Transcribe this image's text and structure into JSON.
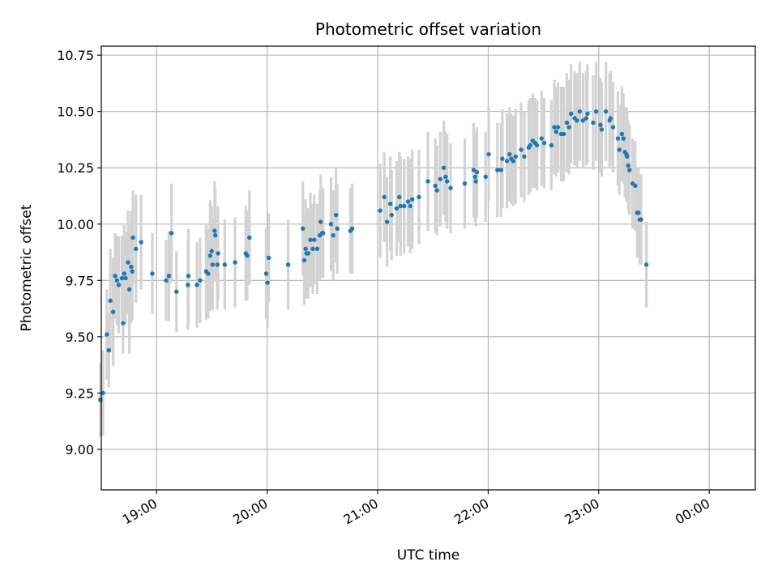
{
  "chart_data": {
    "type": "scatter",
    "title": "Photometric offset variation",
    "xlabel": "UTC time",
    "ylabel": "Photometric offset",
    "x_unit": "minutes relative to 00:00 UTC",
    "xlim": [
      -330,
      25
    ],
    "ylim": [
      8.82,
      10.79
    ],
    "x_ticks": [
      {
        "value": -300,
        "label": "19:00"
      },
      {
        "value": -240,
        "label": "20:00"
      },
      {
        "value": -180,
        "label": "21:00"
      },
      {
        "value": -120,
        "label": "22:00"
      },
      {
        "value": -60,
        "label": "23:00"
      },
      {
        "value": 0,
        "label": "00:00"
      }
    ],
    "y_ticks": [
      9.0,
      9.25,
      9.5,
      9.75,
      10.0,
      10.25,
      10.5,
      10.75
    ],
    "y_tick_labels": [
      "9.00",
      "9.25",
      "9.50",
      "9.75",
      "10.00",
      "10.25",
      "10.50",
      "10.75"
    ],
    "grid": true,
    "colors": {
      "points": "#1f77b4",
      "errorbars": "#d3d3d3",
      "grid": "#b0b0b0"
    },
    "series": [
      {
        "points": [
          [
            -330.5,
            9.22,
            0.33
          ],
          [
            -329.1,
            9.25,
            0.38
          ],
          [
            -327.0,
            9.51,
            0.4
          ],
          [
            -325.9,
            9.44,
            0.33
          ],
          [
            -325.1,
            9.66,
            0.46
          ],
          [
            -323.6,
            9.61,
            0.48
          ],
          [
            -322.5,
            9.77,
            0.38
          ],
          [
            -321.5,
            9.75,
            0.4
          ],
          [
            -320.5,
            9.73,
            0.43
          ],
          [
            -318.8,
            9.76,
            0.38
          ],
          [
            -318.2,
            9.56,
            0.27
          ],
          [
            -317.6,
            9.78,
            0.43
          ],
          [
            -316.8,
            9.76,
            0.41
          ],
          [
            -315.5,
            9.83,
            0.46
          ],
          [
            -314.8,
            9.71,
            0.57
          ],
          [
            -313.8,
            9.81,
            0.5
          ],
          [
            -313.2,
            9.79,
            0.43
          ],
          [
            -312.8,
            9.94,
            0.42
          ],
          [
            -311.2,
            9.89,
            0.48
          ],
          [
            -308.4,
            9.92,
            0.42
          ],
          [
            -302.3,
            9.78,
            0.36
          ],
          [
            -294.8,
            9.75,
            0.36
          ],
          [
            -293.3,
            9.77,
            0.4
          ],
          [
            -291.9,
            9.96,
            0.44
          ],
          [
            -289.2,
            9.7,
            0.36
          ],
          [
            -283.0,
            9.73,
            0.4
          ],
          [
            -282.7,
            9.77,
            0.42
          ],
          [
            -278.1,
            9.73,
            0.38
          ],
          [
            -276.4,
            9.75,
            0.38
          ],
          [
            -273.1,
            9.79,
            0.43
          ],
          [
            -272.0,
            9.78,
            0.4
          ],
          [
            -270.9,
            9.86,
            0.49
          ],
          [
            -270.1,
            9.88,
            0.4
          ],
          [
            -269.6,
            9.82,
            0.4
          ],
          [
            -268.5,
            9.97,
            0.44
          ],
          [
            -268.1,
            9.95,
            0.41
          ],
          [
            -267.0,
            9.82,
            0.4
          ],
          [
            -266.6,
            9.87,
            0.42
          ],
          [
            -263.0,
            9.82,
            0.4
          ],
          [
            -257.4,
            9.83,
            0.4
          ],
          [
            -251.6,
            9.87,
            0.42
          ],
          [
            -250.8,
            9.86,
            0.4
          ],
          [
            -249.6,
            9.94,
            0.42
          ],
          [
            -240.5,
            9.78,
            0.4
          ],
          [
            -239.8,
            9.74,
            0.4
          ],
          [
            -239.1,
            9.85,
            0.4
          ],
          [
            -228.6,
            9.82,
            0.4
          ],
          [
            -220.6,
            9.98,
            0.42
          ],
          [
            -219.8,
            9.84,
            0.4
          ],
          [
            -219.1,
            9.89,
            0.44
          ],
          [
            -218.6,
            9.87,
            0.4
          ],
          [
            -217.7,
            9.87,
            0.4
          ],
          [
            -216.5,
            9.93,
            0.42
          ],
          [
            -215.2,
            9.89,
            0.4
          ],
          [
            -214.4,
            9.93,
            0.4
          ],
          [
            -212.8,
            9.89,
            0.4
          ],
          [
            -211.4,
            9.95,
            0.4
          ],
          [
            -210.9,
            10.01,
            0.42
          ],
          [
            -210.1,
            9.96,
            0.4
          ],
          [
            -209.6,
            9.96,
            0.4
          ],
          [
            -205.3,
            10.0,
            0.42
          ],
          [
            -204.1,
            9.95,
            0.4
          ],
          [
            -202.6,
            10.04,
            0.42
          ],
          [
            -201.9,
            9.98,
            0.4
          ],
          [
            -194.8,
            9.97,
            0.38
          ],
          [
            -193.8,
            9.98,
            0.4
          ],
          [
            -178.6,
            10.06,
            0.42
          ],
          [
            -176.4,
            10.12,
            0.4
          ],
          [
            -174.9,
            10.01,
            0.4
          ],
          [
            -173.1,
            10.09,
            0.42
          ],
          [
            -172.4,
            10.04,
            0.4
          ],
          [
            -169.7,
            10.07,
            0.42
          ],
          [
            -168.2,
            10.12,
            0.4
          ],
          [
            -167.6,
            10.08,
            0.44
          ],
          [
            -165.6,
            10.08,
            0.42
          ],
          [
            -163.5,
            10.1,
            0.4
          ],
          [
            -162.3,
            10.08,
            0.42
          ],
          [
            -161.2,
            10.11,
            0.44
          ],
          [
            -157.6,
            10.12,
            0.42
          ],
          [
            -152.7,
            10.19,
            0.44
          ],
          [
            -148.7,
            10.17,
            0.42
          ],
          [
            -147.8,
            10.15,
            0.4
          ],
          [
            -146.0,
            10.2,
            0.42
          ],
          [
            -144.1,
            10.25,
            0.42
          ],
          [
            -143.1,
            10.21,
            0.4
          ],
          [
            -142.3,
            10.19,
            0.42
          ],
          [
            -140.4,
            10.16,
            0.4
          ],
          [
            -132.7,
            10.18,
            0.4
          ],
          [
            -127.9,
            10.24,
            0.42
          ],
          [
            -127.1,
            10.21,
            0.4
          ],
          [
            -126.7,
            10.19,
            0.4
          ],
          [
            -126.1,
            10.23,
            0.4
          ],
          [
            -121.4,
            10.21,
            0.4
          ],
          [
            -119.7,
            10.31,
            0.42
          ],
          [
            -115.0,
            10.24,
            0.42
          ],
          [
            -113.0,
            10.24,
            0.42
          ],
          [
            -112.3,
            10.29,
            0.44
          ],
          [
            -109.8,
            10.28,
            0.42
          ],
          [
            -108.4,
            10.31,
            0.42
          ],
          [
            -107.5,
            10.29,
            0.4
          ],
          [
            -106.4,
            10.28,
            0.4
          ],
          [
            -105.1,
            10.3,
            0.42
          ],
          [
            -102.1,
            10.33,
            0.42
          ],
          [
            -100.4,
            10.3,
            0.4
          ],
          [
            -98.0,
            10.34,
            0.42
          ],
          [
            -97.2,
            10.35,
            0.42
          ],
          [
            -95.8,
            10.37,
            0.42
          ],
          [
            -94.5,
            10.36,
            0.4
          ],
          [
            -93.5,
            10.35,
            0.4
          ],
          [
            -91.0,
            10.38,
            0.42
          ],
          [
            -89.6,
            10.36,
            0.4
          ],
          [
            -85.7,
            10.35,
            0.4
          ],
          [
            -84.1,
            10.43,
            0.42
          ],
          [
            -83.1,
            10.41,
            0.4
          ],
          [
            -82.1,
            10.43,
            0.4
          ],
          [
            -80.4,
            10.4,
            0.42
          ],
          [
            -79.0,
            10.4,
            0.42
          ],
          [
            -77.3,
            10.45,
            0.44
          ],
          [
            -76.1,
            10.43,
            0.42
          ],
          [
            -75.0,
            10.49,
            0.44
          ],
          [
            -73.1,
            10.47,
            0.42
          ],
          [
            -71.8,
            10.46,
            0.42
          ],
          [
            -70.3,
            10.5,
            0.44
          ],
          [
            -68.5,
            10.46,
            0.42
          ],
          [
            -66.8,
            10.47,
            0.42
          ],
          [
            -66.1,
            10.49,
            0.44
          ],
          [
            -63.0,
            10.45,
            0.42
          ],
          [
            -61.4,
            10.5,
            0.44
          ],
          [
            -59.1,
            10.44,
            0.42
          ],
          [
            -58.4,
            10.42,
            0.42
          ],
          [
            -56.1,
            10.5,
            0.44
          ],
          [
            -54.1,
            10.46,
            0.42
          ],
          [
            -53.6,
            10.47,
            0.42
          ],
          [
            -52.2,
            10.43,
            0.4
          ],
          [
            -49.6,
            10.38,
            0.42
          ],
          [
            -48.8,
            10.33,
            0.4
          ],
          [
            -47.4,
            10.4,
            0.42
          ],
          [
            -46.6,
            10.38,
            0.4
          ],
          [
            -45.8,
            10.32,
            0.4
          ],
          [
            -45.0,
            10.31,
            0.42
          ],
          [
            -44.6,
            10.3,
            0.4
          ],
          [
            -44.0,
            10.26,
            0.4
          ],
          [
            -43.3,
            10.24,
            0.4
          ],
          [
            -41.6,
            10.18,
            0.4
          ],
          [
            -40.2,
            10.17,
            0.4
          ],
          [
            -39.1,
            10.05,
            0.4
          ],
          [
            -38.4,
            10.05,
            0.4
          ],
          [
            -37.7,
            10.02,
            0.4
          ],
          [
            -37.0,
            10.02,
            0.4
          ],
          [
            -34.1,
            9.82,
            0.38
          ]
        ]
      }
    ]
  }
}
